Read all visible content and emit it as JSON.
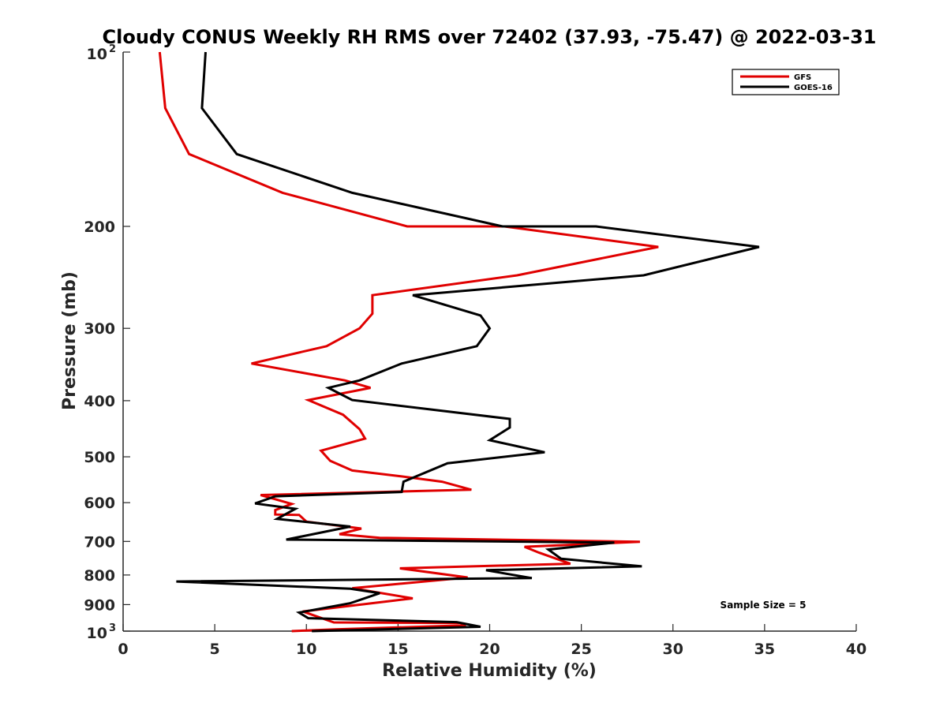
{
  "chart_data": {
    "type": "line",
    "title": "Cloudy CONUS Weekly RH RMS over 72402 (37.93, -75.47) @ 2022-03-31",
    "xlabel": "Relative Humidity (%)",
    "ylabel": "Pressure (mb)",
    "xlim": [
      0,
      40
    ],
    "ylim": [
      100,
      1000
    ],
    "y_scale": "log",
    "y_reversed": true,
    "x_ticks": [
      {
        "value": 0,
        "label": "0"
      },
      {
        "value": 5,
        "label": "5"
      },
      {
        "value": 10,
        "label": "10"
      },
      {
        "value": 15,
        "label": "15"
      },
      {
        "value": 20,
        "label": "20"
      },
      {
        "value": 25,
        "label": "25"
      },
      {
        "value": 30,
        "label": "30"
      },
      {
        "value": 35,
        "label": "35"
      },
      {
        "value": 40,
        "label": "40"
      }
    ],
    "y_ticks": [
      {
        "value": 100,
        "label": "10",
        "exp": "2"
      },
      {
        "value": 200,
        "label": "200"
      },
      {
        "value": 300,
        "label": "300"
      },
      {
        "value": 400,
        "label": "400"
      },
      {
        "value": 500,
        "label": "500"
      },
      {
        "value": 600,
        "label": "600"
      },
      {
        "value": 700,
        "label": "700"
      },
      {
        "value": 800,
        "label": "800"
      },
      {
        "value": 900,
        "label": "900"
      },
      {
        "value": 1000,
        "label": "10",
        "exp": "3"
      }
    ],
    "grid": false,
    "legend_position": "top-right",
    "annotation": "Sample Size = 5",
    "series": [
      {
        "name": "GFS",
        "color": "#e00000",
        "points": [
          [
            2.0,
            100
          ],
          [
            2.3,
            125
          ],
          [
            3.6,
            150
          ],
          [
            8.7,
            175
          ],
          [
            15.5,
            200
          ],
          [
            20.8,
            200
          ],
          [
            29.2,
            217
          ],
          [
            21.5,
            243
          ],
          [
            13.6,
            263
          ],
          [
            13.6,
            283
          ],
          [
            12.9,
            300
          ],
          [
            11.1,
            322
          ],
          [
            7.0,
            345
          ],
          [
            12.1,
            369
          ],
          [
            13.5,
            380
          ],
          [
            10.1,
            399
          ],
          [
            12.0,
            423
          ],
          [
            12.9,
            448
          ],
          [
            13.2,
            465
          ],
          [
            10.8,
            488
          ],
          [
            11.3,
            508
          ],
          [
            12.5,
            528
          ],
          [
            15.1,
            540
          ],
          [
            17.4,
            552
          ],
          [
            19.0,
            570
          ],
          [
            7.5,
            582
          ],
          [
            9.2,
            603
          ],
          [
            8.3,
            618
          ],
          [
            8.3,
            629
          ],
          [
            9.6,
            630
          ],
          [
            10.0,
            647
          ],
          [
            13.0,
            665
          ],
          [
            11.8,
            680
          ],
          [
            14.0,
            690
          ],
          [
            28.2,
            701
          ],
          [
            21.9,
            715
          ],
          [
            22.7,
            732
          ],
          [
            24.4,
            765
          ],
          [
            15.1,
            779
          ],
          [
            18.8,
            808
          ],
          [
            12.5,
            843
          ],
          [
            15.8,
            878
          ],
          [
            9.8,
            925
          ],
          [
            11.5,
            966
          ],
          [
            18.4,
            968
          ],
          [
            18.7,
            977
          ],
          [
            11.6,
            993
          ],
          [
            9.2,
            1000
          ]
        ]
      },
      {
        "name": "GOES-16",
        "color": "#000000",
        "points": [
          [
            4.5,
            100
          ],
          [
            4.3,
            125
          ],
          [
            6.2,
            150
          ],
          [
            12.5,
            175
          ],
          [
            20.7,
            200
          ],
          [
            25.8,
            200
          ],
          [
            34.7,
            217
          ],
          [
            28.4,
            243
          ],
          [
            15.8,
            263
          ],
          [
            19.5,
            285
          ],
          [
            20.0,
            300
          ],
          [
            19.3,
            322
          ],
          [
            15.2,
            345
          ],
          [
            12.9,
            369
          ],
          [
            11.2,
            380
          ],
          [
            12.5,
            399
          ],
          [
            21.1,
            430
          ],
          [
            21.1,
            445
          ],
          [
            20.0,
            468
          ],
          [
            23.0,
            491
          ],
          [
            17.7,
            513
          ],
          [
            15.3,
            552
          ],
          [
            15.2,
            575
          ],
          [
            8.3,
            585
          ],
          [
            7.2,
            602
          ],
          [
            9.4,
            615
          ],
          [
            8.4,
            640
          ],
          [
            12.4,
            660
          ],
          [
            8.9,
            695
          ],
          [
            26.8,
            703
          ],
          [
            23.2,
            723
          ],
          [
            23.9,
            750
          ],
          [
            28.3,
            773
          ],
          [
            19.8,
            785
          ],
          [
            22.3,
            810
          ],
          [
            2.9,
            821
          ],
          [
            12.4,
            845
          ],
          [
            14.0,
            860
          ],
          [
            12.4,
            895
          ],
          [
            9.6,
            929
          ],
          [
            10.1,
            950
          ],
          [
            18.2,
            965
          ],
          [
            19.5,
            983
          ],
          [
            10.3,
            1000
          ]
        ]
      }
    ]
  }
}
